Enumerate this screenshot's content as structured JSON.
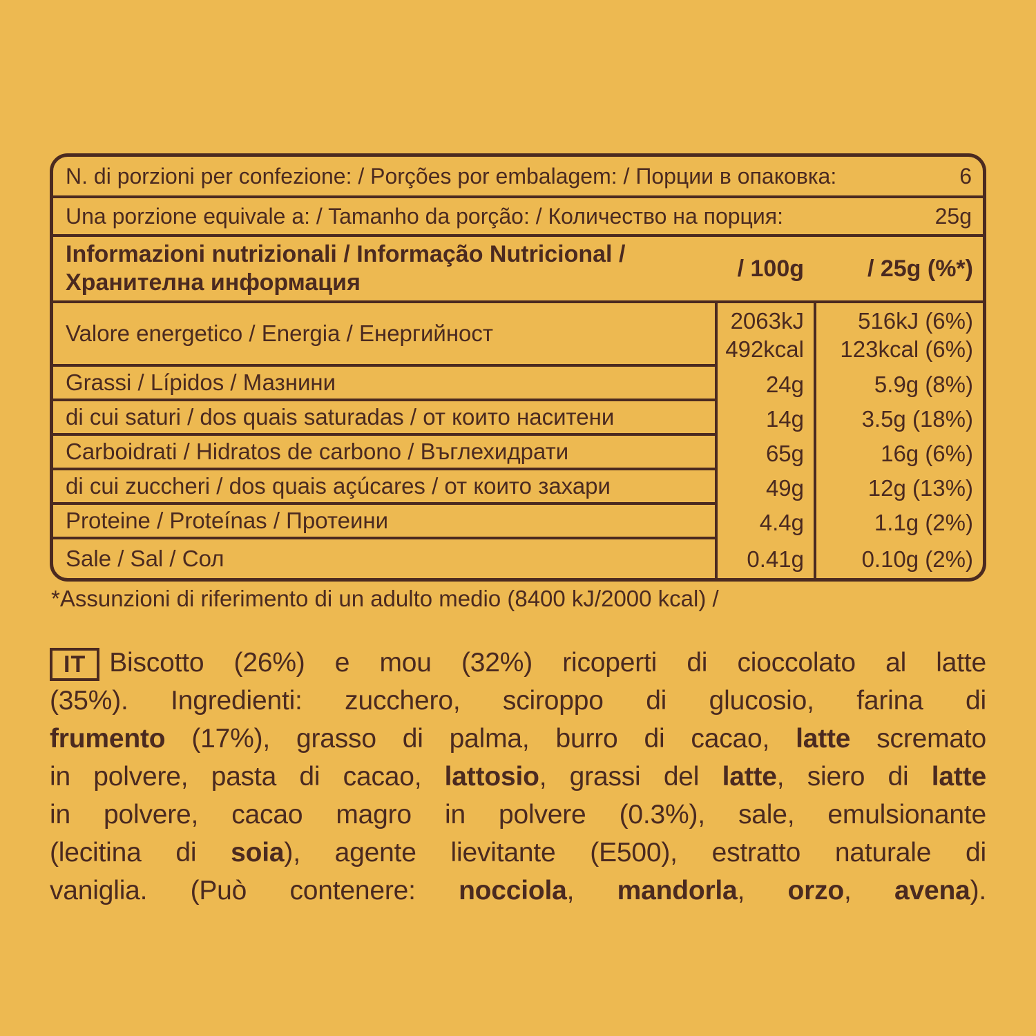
{
  "colors": {
    "background": "#edb951",
    "ink": "#4b2a20"
  },
  "serving_info": {
    "rows": [
      {
        "label": "N. di porzioni per confezione: / Porções por embalagem: / Порции в опаковка:",
        "value": "6"
      },
      {
        "label": "Una porzione equivale a: / Tamanho da porção: / Количество на порция:",
        "value": "25g"
      }
    ]
  },
  "nutrition_table": {
    "title_line1": "Informazioni nutrizionali / Informação Nutricional /",
    "title_line2": "Хранителна информация",
    "col_per_100g": "/ 100g",
    "col_per_25g": "/ 25g (%*)",
    "rows": [
      {
        "label": "Valore energetico / Energia / Енергийност",
        "per_100g": [
          "2063kJ",
          "492kcal"
        ],
        "per_25g": [
          "516kJ (6%)",
          "123kcal (6%)"
        ]
      },
      {
        "label": "Grassi / Lípidos / Мазнини",
        "per_100g": "24g",
        "per_25g": "5.9g (8%)"
      },
      {
        "label": "di cui saturi / dos quais saturadas / от които наситени",
        "per_100g": "14g",
        "per_25g": "3.5g (18%)"
      },
      {
        "label": "Carboidrati / Hidratos de carbono / Въглехидрати",
        "per_100g": "65g",
        "per_25g": "16g (6%)"
      },
      {
        "label": "di cui zuccheri / dos quais açúcares / от които захари",
        "per_100g": "49g",
        "per_25g": "12g (13%)"
      },
      {
        "label": "Proteine / Proteínas / Протеини",
        "per_100g": "4.4g",
        "per_25g": "1.1g (2%)"
      },
      {
        "label": "Sale / Sal / Сол",
        "per_100g": "0.41g",
        "per_25g": "0.10g (2%)"
      }
    ]
  },
  "footnote": "*Assunzioni di riferimento di un adulto medio (8400 kJ/2000 kcal) /",
  "ingredients": {
    "lang_tag": "IT",
    "lines": [
      {
        "badge": true,
        "segments": [
          {
            "t": "Biscotto (26%) e mou (32%) ricoperti di cioccolato al latte",
            "b": false
          }
        ]
      },
      {
        "segments": [
          {
            "t": "(35%). Ingredienti: zucchero, sciroppo di glucosio, farina di",
            "b": false
          }
        ]
      },
      {
        "segments": [
          {
            "t": "frumento",
            "b": true
          },
          {
            "t": " (17%), grasso di palma, burro di cacao, ",
            "b": false
          },
          {
            "t": "latte",
            "b": true
          },
          {
            "t": " scremato",
            "b": false
          }
        ]
      },
      {
        "segments": [
          {
            "t": "in polvere, pasta di cacao, ",
            "b": false
          },
          {
            "t": "lattosio",
            "b": true
          },
          {
            "t": ", grassi del ",
            "b": false
          },
          {
            "t": "latte",
            "b": true
          },
          {
            "t": ", siero di ",
            "b": false
          },
          {
            "t": "latte",
            "b": true
          }
        ]
      },
      {
        "segments": [
          {
            "t": "in polvere, cacao magro in polvere (0.3%), sale, emulsionante",
            "b": false
          }
        ]
      },
      {
        "segments": [
          {
            "t": "(lecitina di ",
            "b": false
          },
          {
            "t": "soia",
            "b": true
          },
          {
            "t": "), agente lievitante (E500), estratto naturale di",
            "b": false
          }
        ]
      },
      {
        "segments": [
          {
            "t": "vaniglia. (Può contenere: ",
            "b": false
          },
          {
            "t": "nocciola",
            "b": true
          },
          {
            "t": ", ",
            "b": false
          },
          {
            "t": "mandorla",
            "b": true
          },
          {
            "t": ", ",
            "b": false
          },
          {
            "t": "orzo",
            "b": true
          },
          {
            "t": ", ",
            "b": false
          },
          {
            "t": "avena",
            "b": true
          },
          {
            "t": ").",
            "b": false
          }
        ]
      }
    ]
  }
}
